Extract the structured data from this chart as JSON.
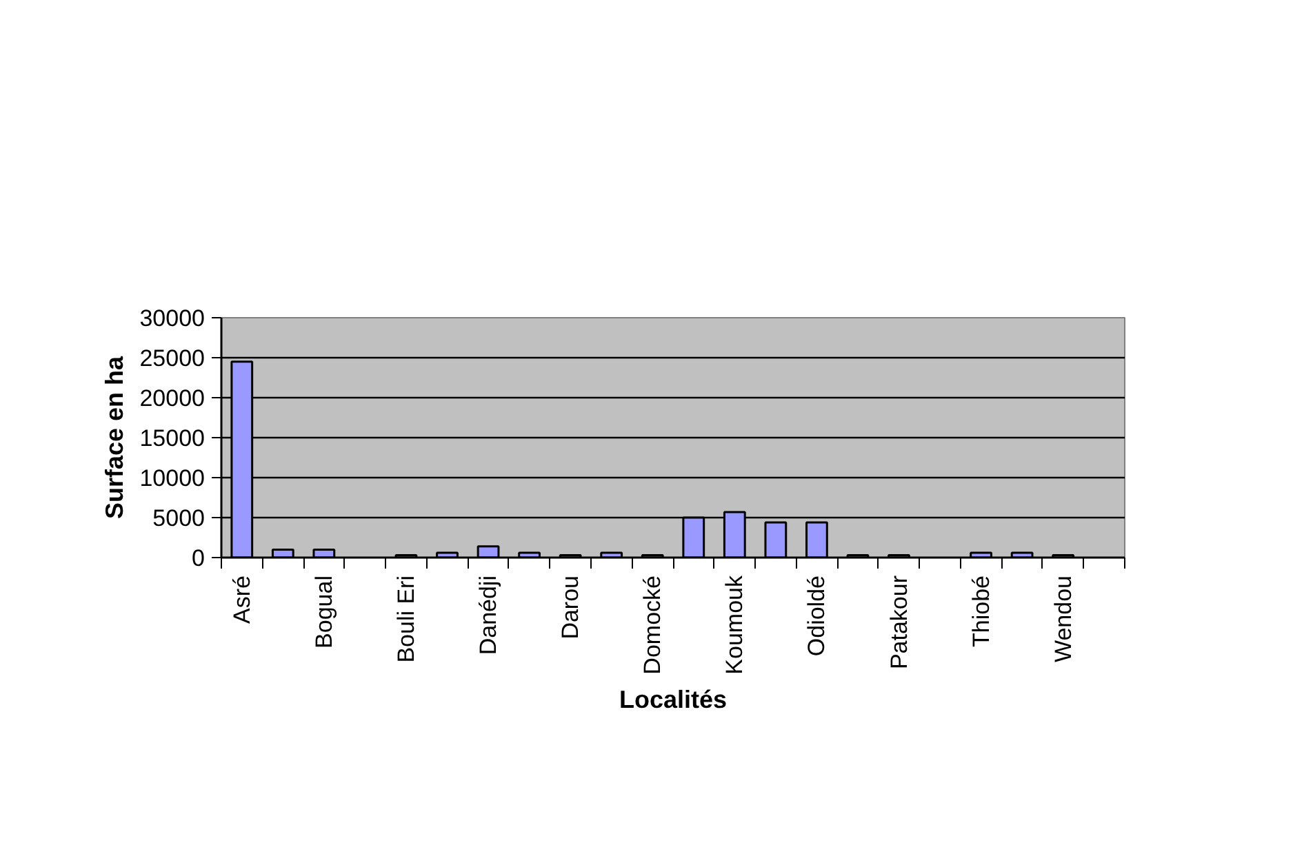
{
  "chart_data": {
    "type": "bar",
    "xlabel": "Localités",
    "ylabel": "Surface en ha",
    "categories": [
      "Asré",
      null,
      "Bogual",
      null,
      "Bouli Eri",
      null,
      "Danédji",
      null,
      "Darou",
      null,
      "Domocké",
      null,
      "Koumouk",
      null,
      "Odioldé",
      null,
      "Patakour",
      null,
      "Thiobé",
      null,
      "Wendou",
      null
    ],
    "values": [
      24500,
      1000,
      1000,
      null,
      300,
      600,
      1400,
      600,
      300,
      600,
      300,
      5000,
      5700,
      4400,
      4400,
      300,
      300,
      null,
      600,
      600,
      300,
      null
    ],
    "color": "#9999ff",
    "ylim": [
      0,
      30000
    ],
    "yticks": [
      0,
      5000,
      10000,
      15000,
      20000,
      25000,
      30000
    ],
    "grid": "y"
  }
}
